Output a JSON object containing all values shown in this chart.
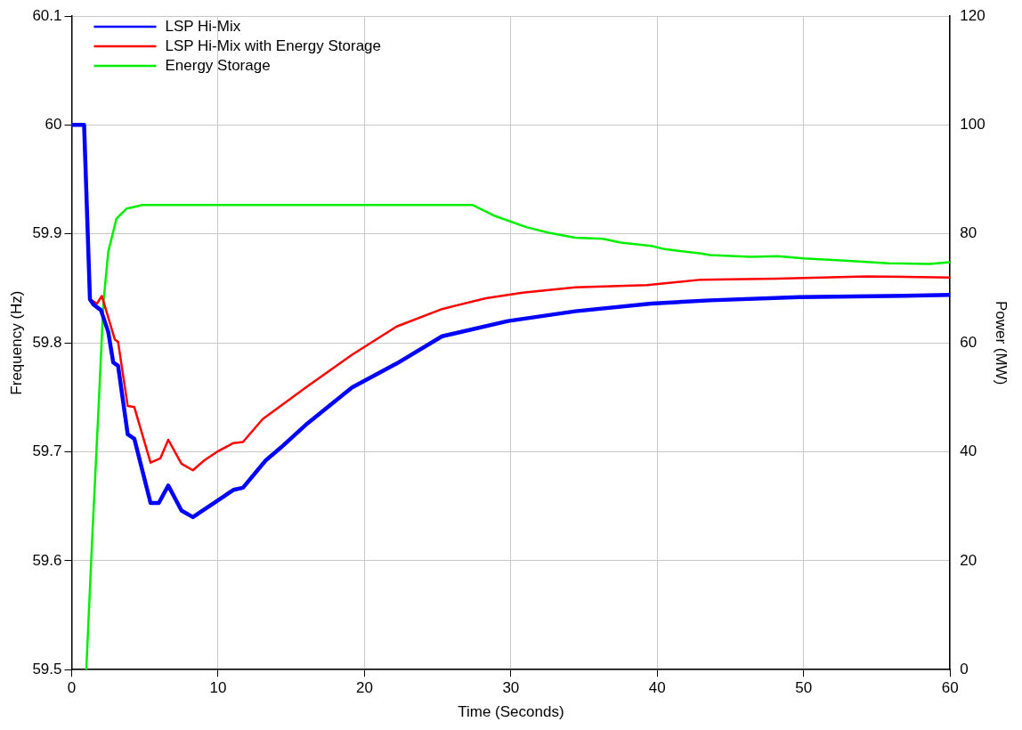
{
  "chart_data": {
    "type": "line",
    "xlabel": "Time (Seconds)",
    "ylabel": "Frequency (Hz)",
    "y2label": "Power (MW)",
    "xlim": [
      0,
      60
    ],
    "xticks": [
      0,
      10,
      20,
      30,
      40,
      50,
      60
    ],
    "ylim": [
      59.5,
      60.1
    ],
    "yticks": [
      59.5,
      59.6,
      59.7,
      59.8,
      59.9,
      60,
      60.1
    ],
    "y2lim": [
      0,
      120
    ],
    "y2ticks": [
      0,
      20,
      40,
      60,
      80,
      100,
      120
    ],
    "grid": true,
    "legend": "top left",
    "marker": "none",
    "line_style": "solid",
    "series": [
      {
        "name": "LSP Hi-Mix",
        "color": "#0000ff",
        "x": [
          0,
          0.85,
          1.25,
          1.5,
          2,
          2.5,
          2.84,
          3.17,
          3.83,
          4.28,
          5.39,
          5.95,
          6.6,
          7.5,
          8.28,
          9.05,
          9.94,
          11.05,
          11.7,
          13.25,
          14.3,
          16.1,
          19.15,
          22.2,
          25.3,
          29.8,
          34.4,
          39.6,
          43.6,
          49.7,
          55.8,
          60
        ],
        "values": [
          60,
          60,
          59.84,
          59.835,
          59.83,
          59.81,
          59.782,
          59.779,
          59.716,
          59.712,
          59.653,
          59.653,
          59.669,
          59.646,
          59.64,
          59.647,
          59.655,
          59.665,
          59.667,
          59.692,
          59.704,
          59.726,
          59.759,
          59.781,
          59.806,
          59.82,
          59.829,
          59.836,
          59.839,
          59.842,
          59.843,
          59.844
        ]
      },
      {
        "name": "LSP Hi-Mix with Energy Storage",
        "color": "#ff0000",
        "x": [
          0,
          0.85,
          1.25,
          1.73,
          2.06,
          2.95,
          3.17,
          3.83,
          4.28,
          5.39,
          6.06,
          6.6,
          7.5,
          8.28,
          9.05,
          9.94,
          11.05,
          11.7,
          13.05,
          16.1,
          19.15,
          22.2,
          25.3,
          28.3,
          30.8,
          34.4,
          39.3,
          43,
          48.2,
          54.3,
          60
        ],
        "values": [
          60,
          60,
          59.84,
          59.836,
          59.843,
          59.803,
          59.801,
          59.742,
          59.741,
          59.69,
          59.694,
          59.711,
          59.689,
          59.683,
          59.692,
          59.7,
          59.708,
          59.709,
          59.73,
          59.76,
          59.789,
          59.815,
          59.831,
          59.841,
          59.846,
          59.851,
          59.853,
          59.858,
          59.859,
          59.861,
          59.86
        ]
      },
      {
        "name": "Energy Storage",
        "color": "#00ee00",
        "axis": "y2",
        "x": [
          1,
          1.4,
          1.84,
          2.17,
          2.5,
          3.06,
          3.73,
          4.84,
          27.4,
          28.9,
          31.1,
          32.6,
          34.4,
          36.3,
          37.5,
          39.6,
          40.5,
          43,
          43.6,
          46.4,
          48.2,
          50,
          52.8,
          55.8,
          58.6,
          60
        ],
        "values": [
          0,
          23.9,
          48.2,
          67.3,
          76.7,
          82.8,
          84.6,
          85.3,
          85.3,
          83.3,
          81.2,
          80.2,
          79.3,
          79.1,
          78.4,
          77.8,
          77.2,
          76.4,
          76.1,
          75.8,
          75.9,
          75.5,
          75.1,
          74.6,
          74.5,
          74.8
        ]
      }
    ]
  }
}
